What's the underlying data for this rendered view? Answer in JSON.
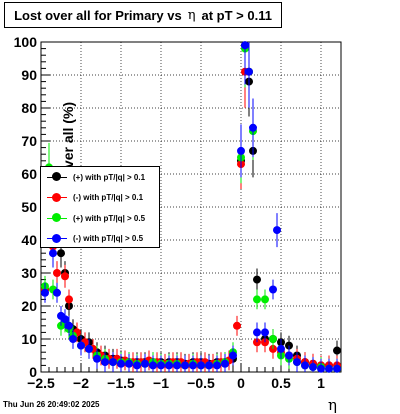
{
  "title": {
    "prefix": "Lost over all for Primary vs",
    "symbol": "η",
    "suffix": "at pT > 0.11"
  },
  "timestamp": "Thu Jun 26 20:49:02 2025",
  "chart_data": {
    "type": "scatter",
    "xlabel": "η",
    "ylabel": "Lost over all (%)",
    "xlim": [
      -2.5,
      1.25
    ],
    "ylim": [
      0,
      100
    ],
    "xticks": [
      -2.5,
      -2,
      -1.5,
      -1,
      -0.5,
      0,
      0.5,
      1
    ],
    "xtick_labels": [
      "−2.5",
      "−2",
      "−1.5",
      "−1",
      "−0.5",
      "0",
      "0.5",
      "1"
    ],
    "yticks": [
      0,
      10,
      20,
      30,
      40,
      50,
      60,
      70,
      80,
      90,
      100
    ],
    "grid": true,
    "legend_position": "left-middle",
    "series": [
      {
        "name": "(+) with pT/|q| > 0.1",
        "color": "#000000",
        "points": [
          [
            -2.45,
            25
          ],
          [
            -2.35,
            40
          ],
          [
            -2.25,
            36
          ],
          [
            -2.2,
            30
          ],
          [
            -2.15,
            20
          ],
          [
            -2.1,
            13
          ],
          [
            -2.0,
            10
          ],
          [
            -1.9,
            9
          ],
          [
            -1.8,
            6
          ],
          [
            -1.7,
            5
          ],
          [
            -1.6,
            4
          ],
          [
            -1.5,
            3.5
          ],
          [
            -1.4,
            3
          ],
          [
            -1.3,
            3
          ],
          [
            -1.2,
            3
          ],
          [
            -1.1,
            3
          ],
          [
            -1.0,
            3
          ],
          [
            -0.9,
            3
          ],
          [
            -0.8,
            3
          ],
          [
            -0.7,
            2.5
          ],
          [
            -0.6,
            3
          ],
          [
            -0.5,
            3
          ],
          [
            -0.4,
            2.5
          ],
          [
            -0.3,
            3
          ],
          [
            -0.2,
            3
          ],
          [
            -0.1,
            4
          ],
          [
            0.0,
            64
          ],
          [
            0.05,
            99
          ],
          [
            0.1,
            88
          ],
          [
            0.15,
            67
          ],
          [
            0.2,
            28
          ],
          [
            0.3,
            10
          ],
          [
            0.4,
            10
          ],
          [
            0.5,
            9
          ],
          [
            0.6,
            8
          ],
          [
            0.7,
            5
          ],
          [
            0.8,
            3
          ],
          [
            0.9,
            2.5
          ],
          [
            1.0,
            2
          ],
          [
            1.1,
            2
          ],
          [
            1.2,
            6.5
          ]
        ]
      },
      {
        "name": "(-) with pT/|q| > 0.1",
        "color": "#ff0000",
        "points": [
          [
            -2.45,
            25
          ],
          [
            -2.35,
            38
          ],
          [
            -2.3,
            30
          ],
          [
            -2.2,
            29
          ],
          [
            -2.15,
            22
          ],
          [
            -2.05,
            12
          ],
          [
            -1.95,
            9
          ],
          [
            -1.85,
            7
          ],
          [
            -1.75,
            5
          ],
          [
            -1.65,
            4
          ],
          [
            -1.55,
            4
          ],
          [
            -1.45,
            3.5
          ],
          [
            -1.35,
            3
          ],
          [
            -1.25,
            3
          ],
          [
            -1.15,
            3.5
          ],
          [
            -1.05,
            3
          ],
          [
            -0.95,
            2.5
          ],
          [
            -0.85,
            3
          ],
          [
            -0.75,
            3
          ],
          [
            -0.65,
            2.5
          ],
          [
            -0.55,
            3
          ],
          [
            -0.45,
            3
          ],
          [
            -0.35,
            2.5
          ],
          [
            -0.25,
            3
          ],
          [
            -0.15,
            3.5
          ],
          [
            -0.05,
            14
          ],
          [
            0.0,
            63
          ],
          [
            0.05,
            91
          ],
          [
            0.1,
            91
          ],
          [
            0.2,
            9
          ],
          [
            0.3,
            9
          ],
          [
            0.4,
            7
          ],
          [
            0.5,
            6
          ],
          [
            0.6,
            5
          ],
          [
            0.7,
            4
          ],
          [
            0.8,
            3
          ],
          [
            0.9,
            2.5
          ],
          [
            1.0,
            2
          ],
          [
            1.1,
            2
          ],
          [
            1.2,
            2
          ]
        ]
      },
      {
        "name": "(+) with pT/|q| > 0.5",
        "color": "#00ee00",
        "points": [
          [
            -2.45,
            26
          ],
          [
            -2.4,
            62
          ],
          [
            -2.35,
            25
          ],
          [
            -2.25,
            14
          ],
          [
            -2.2,
            15
          ],
          [
            -2.15,
            13
          ],
          [
            -2.1,
            11
          ],
          [
            -2.0,
            8
          ],
          [
            -1.9,
            7
          ],
          [
            -1.8,
            5
          ],
          [
            -1.7,
            4
          ],
          [
            -1.6,
            3
          ],
          [
            -1.5,
            3
          ],
          [
            -1.4,
            3
          ],
          [
            -1.3,
            2.5
          ],
          [
            -1.2,
            2.5
          ],
          [
            -1.1,
            3
          ],
          [
            -1.0,
            2.5
          ],
          [
            -0.9,
            2.5
          ],
          [
            -0.8,
            2.5
          ],
          [
            -0.7,
            2
          ],
          [
            -0.6,
            2.5
          ],
          [
            -0.5,
            2
          ],
          [
            -0.4,
            2
          ],
          [
            -0.3,
            2.5
          ],
          [
            -0.2,
            3
          ],
          [
            -0.1,
            6
          ],
          [
            0.0,
            65
          ],
          [
            0.05,
            98
          ],
          [
            0.1,
            91
          ],
          [
            0.15,
            73
          ],
          [
            0.2,
            22
          ],
          [
            0.3,
            22
          ],
          [
            0.4,
            10
          ],
          [
            0.5,
            5
          ],
          [
            0.6,
            4
          ],
          [
            0.7,
            3
          ],
          [
            0.8,
            2
          ],
          [
            0.9,
            1.5
          ],
          [
            1.0,
            1.5
          ],
          [
            1.1,
            1
          ],
          [
            1.2,
            1
          ]
        ]
      },
      {
        "name": "(-) with pT/|q| > 0.5",
        "color": "#0000ff",
        "points": [
          [
            -2.45,
            24
          ],
          [
            -2.35,
            36
          ],
          [
            -2.3,
            24
          ],
          [
            -2.25,
            17
          ],
          [
            -2.2,
            16
          ],
          [
            -2.15,
            14
          ],
          [
            -2.1,
            10
          ],
          [
            -2.0,
            8
          ],
          [
            -1.9,
            7
          ],
          [
            -1.8,
            4
          ],
          [
            -1.7,
            3
          ],
          [
            -1.6,
            3
          ],
          [
            -1.5,
            2.5
          ],
          [
            -1.4,
            2.5
          ],
          [
            -1.3,
            2
          ],
          [
            -1.2,
            2.5
          ],
          [
            -1.1,
            2
          ],
          [
            -1.0,
            2
          ],
          [
            -0.9,
            2
          ],
          [
            -0.8,
            2
          ],
          [
            -0.7,
            2
          ],
          [
            -0.6,
            2
          ],
          [
            -0.5,
            2
          ],
          [
            -0.4,
            2
          ],
          [
            -0.3,
            2
          ],
          [
            -0.2,
            2.5
          ],
          [
            -0.1,
            5
          ],
          [
            0.0,
            67
          ],
          [
            0.05,
            99
          ],
          [
            0.1,
            91
          ],
          [
            0.15,
            74
          ],
          [
            0.2,
            12
          ],
          [
            0.3,
            12
          ],
          [
            0.4,
            25
          ],
          [
            0.45,
            43
          ],
          [
            0.5,
            7
          ],
          [
            0.6,
            5
          ],
          [
            0.7,
            3
          ],
          [
            0.8,
            2
          ],
          [
            0.9,
            1.5
          ],
          [
            1.0,
            1
          ],
          [
            1.1,
            1
          ],
          [
            1.2,
            1
          ]
        ]
      }
    ]
  }
}
